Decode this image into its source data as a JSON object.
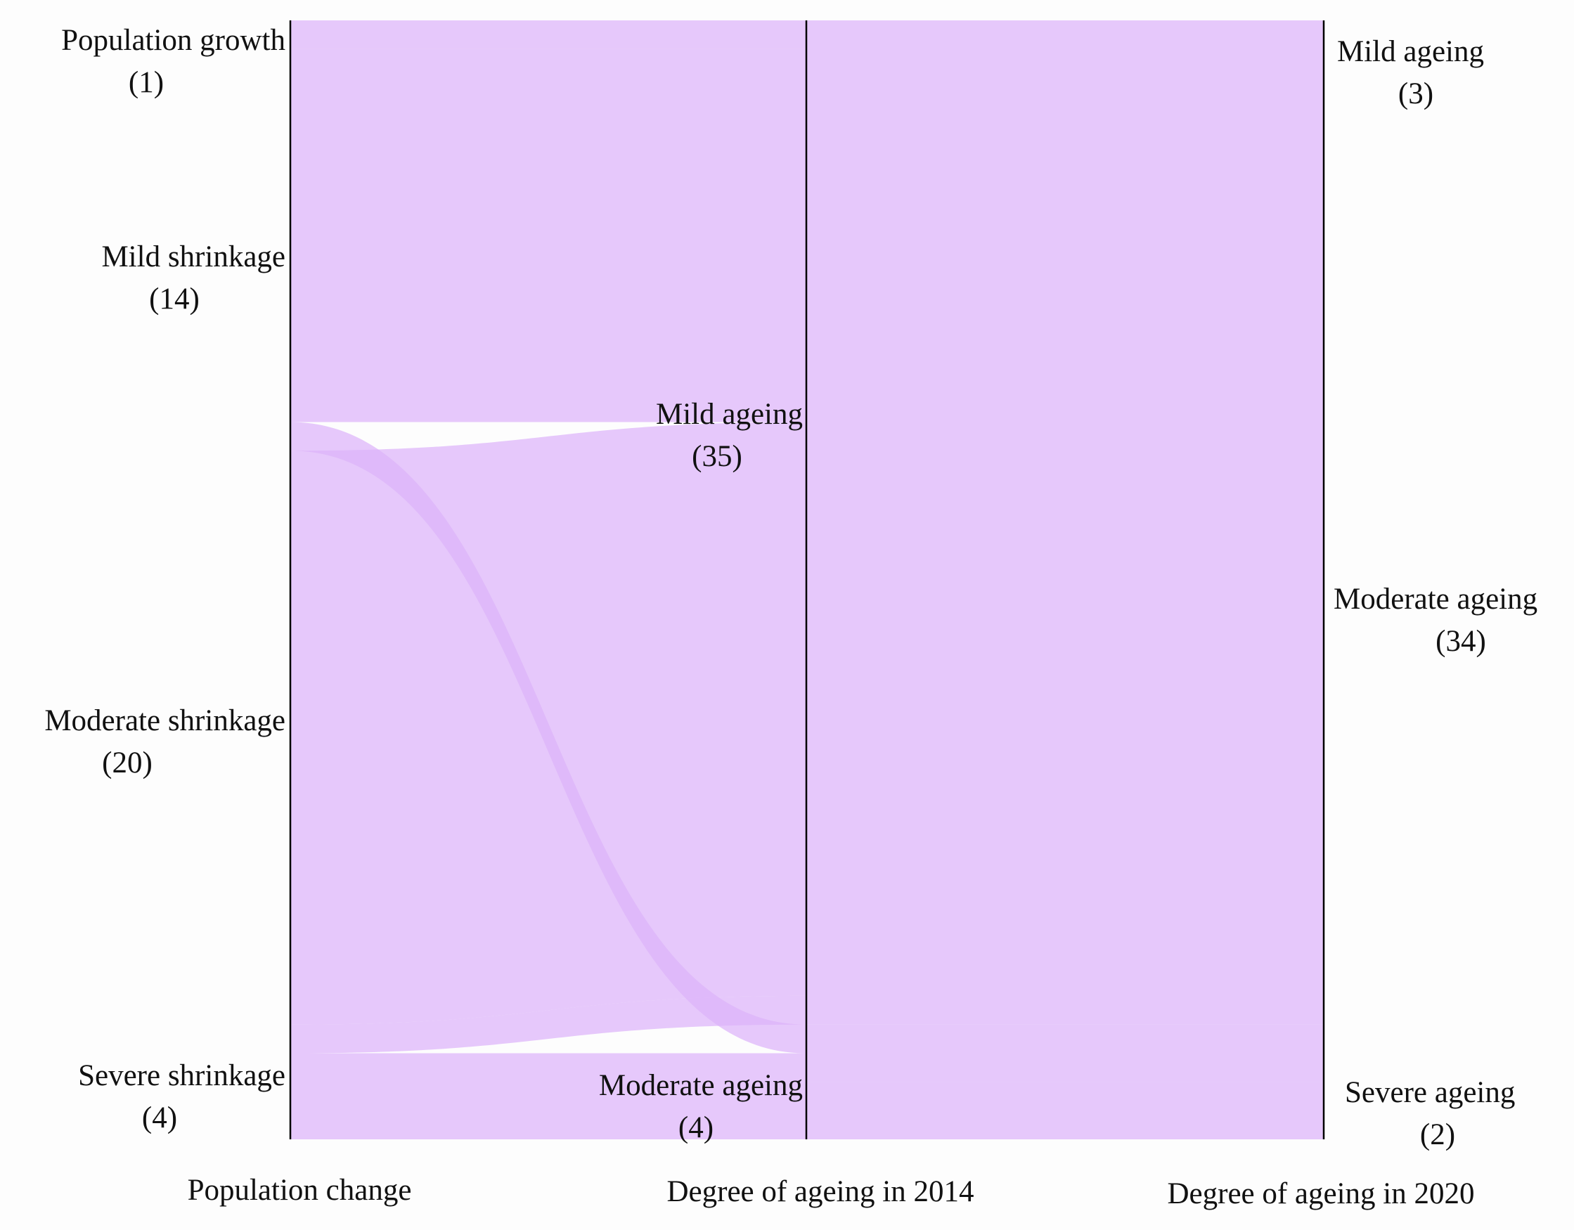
{
  "chart_data": {
    "type": "alluvial",
    "colors": {
      "flow": "#dcb3fa",
      "axis": "#000000",
      "text": "#111111"
    },
    "axes": [
      {
        "id": "pop",
        "label": "Population change",
        "nodes": [
          {
            "id": "pg",
            "name": "Population growth",
            "count": "(1)",
            "value": 1
          },
          {
            "id": "ms",
            "name": "Mild shrinkage",
            "count": "(14)",
            "value": 14
          },
          {
            "id": "mds",
            "name": "Moderate shrinkage",
            "count": "(20)",
            "value": 20
          },
          {
            "id": "ss",
            "name": "Severe shrinkage",
            "count": "(4)",
            "value": 4
          }
        ]
      },
      {
        "id": "a14",
        "label": "Degree of ageing in 2014",
        "nodes": [
          {
            "id": "mild14",
            "name": "Mild ageing",
            "count": "(35)",
            "value": 35
          },
          {
            "id": "mod14",
            "name": "Moderate ageing",
            "count": "(4)",
            "value": 4
          }
        ]
      },
      {
        "id": "a20",
        "label": "Degree of ageing in 2020",
        "nodes": [
          {
            "id": "mild20",
            "name": "Mild ageing",
            "count": "(3)",
            "value": 3
          },
          {
            "id": "mod20",
            "name": "Moderate ageing",
            "count": "(34)",
            "value": 34
          },
          {
            "id": "sev20",
            "name": "Severe ageing",
            "count": "(2)",
            "value": 2
          }
        ]
      }
    ],
    "flows": [
      {
        "from": "pg",
        "to": "mild14",
        "value": 1
      },
      {
        "from": "ms",
        "to": "mild14",
        "value": 13
      },
      {
        "from": "ms",
        "to": "mod14",
        "value": 1
      },
      {
        "from": "mds",
        "to": "mild14",
        "value": 20
      },
      {
        "from": "ss",
        "to": "mild14",
        "value": 1
      },
      {
        "from": "ss",
        "to": "mod14",
        "value": 3
      },
      {
        "from": "mild14",
        "to": "mild20",
        "value": 3
      },
      {
        "from": "mild14",
        "to": "mod20",
        "value": 32
      },
      {
        "from": "mod14",
        "to": "mod20",
        "value": 2
      },
      {
        "from": "mod14",
        "to": "sev20",
        "value": 2
      }
    ]
  }
}
